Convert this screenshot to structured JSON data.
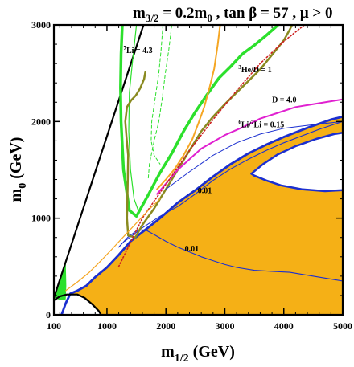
{
  "chart_data": {
    "type": "contour",
    "title": "m3/2 = 0.2m0 , tan β = 57 , μ > 0",
    "title_parts": {
      "m": "m",
      "sub32": "3/2",
      "eq": " = 0.2m",
      "sub0": "0",
      "rest": " , tan β = 57 , μ > 0"
    },
    "xlabel": "m1/2 (GeV)",
    "xlabel_parts": {
      "m": "m",
      "sub": "1/2",
      "unit": " (GeV)"
    },
    "ylabel": "m0 (GeV)",
    "ylabel_parts": {
      "m": "m",
      "sub": "0",
      "unit": " (GeV)"
    },
    "xlim": [
      100,
      5000
    ],
    "ylim": [
      0,
      3000
    ],
    "xticks": [
      "100",
      "1000",
      "2000",
      "3000",
      "4000",
      "5000"
    ],
    "yticks": [
      "0",
      "1000",
      "2000",
      "3000"
    ],
    "grid": false,
    "colors": {
      "allowed_region": "#f5b016",
      "boundary": "#1b2fd0",
      "green": "#2ce02c",
      "olive": "#8a8a20",
      "orange": "#f5a623",
      "magenta": "#e020d0",
      "red_dotted": "#cc2020",
      "excluded_line": "#000000"
    },
    "annotations": [
      {
        "text": "7Li = 4.3",
        "sup": "7",
        "body": "Li = 4.3",
        "x": 1280,
        "y": 2710
      },
      {
        "text": "3He/D = 1",
        "sup": "3",
        "body": "He/D = 1",
        "x": 3230,
        "y": 2510
      },
      {
        "text": "D = 4.0",
        "sup": "",
        "body": "D = 4.0",
        "x": 3800,
        "y": 2200
      },
      {
        "text": "6Li/7Li = 0.15",
        "sup": "6",
        "body": "Li/",
        "sup2": "7",
        "body2": "Li = 0.15",
        "x": 3230,
        "y": 1940
      },
      {
        "text": "0.01",
        "sup": "",
        "body": "0.01",
        "x": 2540,
        "y": 1260
      },
      {
        "text": "0.01",
        "sup": "",
        "body": "0.01",
        "x": 2320,
        "y": 655
      }
    ],
    "series": [
      {
        "role": "allowed-region",
        "style": "fill",
        "points": [
          [
            230,
            0
          ],
          [
            300,
            120
          ],
          [
            380,
            220
          ],
          [
            500,
            250
          ],
          [
            650,
            300
          ],
          [
            800,
            390
          ],
          [
            1000,
            490
          ],
          [
            1200,
            620
          ],
          [
            1400,
            760
          ],
          [
            1650,
            880
          ],
          [
            1900,
            1000
          ],
          [
            2200,
            1160
          ],
          [
            2500,
            1290
          ],
          [
            2800,
            1430
          ],
          [
            3100,
            1560
          ],
          [
            3400,
            1670
          ],
          [
            3700,
            1760
          ],
          [
            4000,
            1840
          ],
          [
            4400,
            1935
          ],
          [
            4800,
            2020
          ],
          [
            5000,
            2050
          ],
          [
            5000,
            0
          ]
        ]
      },
      {
        "role": "upper-white-pocket",
        "style": "fill-white",
        "points": [
          [
            3450,
            1460
          ],
          [
            3650,
            1560
          ],
          [
            3900,
            1660
          ],
          [
            4200,
            1745
          ],
          [
            4550,
            1820
          ],
          [
            4850,
            1870
          ],
          [
            5000,
            1885
          ],
          [
            5000,
            1290
          ],
          [
            4700,
            1280
          ],
          [
            4300,
            1300
          ],
          [
            3950,
            1340
          ],
          [
            3700,
            1390
          ],
          [
            3500,
            1440
          ]
        ]
      },
      {
        "role": "lower-excluded-region",
        "style": "fill-white",
        "points": [
          [
            100,
            0
          ],
          [
            100,
            150
          ],
          [
            200,
            190
          ],
          [
            320,
            210
          ],
          [
            500,
            210
          ],
          [
            620,
            175
          ],
          [
            750,
            110
          ],
          [
            860,
            40
          ],
          [
            900,
            0
          ]
        ]
      },
      {
        "role": "green-wedge",
        "style": "fill",
        "color": "green",
        "points": [
          [
            100,
            175
          ],
          [
            185,
            300
          ],
          [
            300,
            560
          ],
          [
            310,
            300
          ],
          [
            300,
            160
          ],
          [
            220,
            150
          ]
        ]
      },
      {
        "role": "boundary-contour",
        "style": "line",
        "color": "boundary",
        "width": 2.8,
        "points": [
          [
            230,
            0
          ],
          [
            300,
            120
          ],
          [
            380,
            220
          ],
          [
            500,
            250
          ],
          [
            650,
            300
          ],
          [
            800,
            390
          ],
          [
            1000,
            490
          ],
          [
            1200,
            620
          ],
          [
            1400,
            760
          ],
          [
            1650,
            880
          ],
          [
            1900,
            1000
          ],
          [
            2200,
            1160
          ],
          [
            2500,
            1290
          ],
          [
            2800,
            1430
          ],
          [
            3100,
            1560
          ],
          [
            3400,
            1670
          ],
          [
            3700,
            1760
          ],
          [
            4000,
            1840
          ],
          [
            4400,
            1935
          ],
          [
            4800,
            2020
          ],
          [
            5000,
            2050
          ]
        ]
      },
      {
        "role": "pocket-boundary",
        "style": "line",
        "color": "boundary",
        "width": 2.5,
        "points": [
          [
            5000,
            1885
          ],
          [
            4850,
            1870
          ],
          [
            4550,
            1820
          ],
          [
            4200,
            1745
          ],
          [
            3900,
            1660
          ],
          [
            3650,
            1560
          ],
          [
            3450,
            1460
          ],
          [
            3500,
            1440
          ],
          [
            3700,
            1390
          ],
          [
            3950,
            1340
          ],
          [
            4300,
            1300
          ],
          [
            4700,
            1280
          ],
          [
            5000,
            1290
          ]
        ]
      },
      {
        "role": "contour-0.01-upper",
        "style": "line",
        "color": "boundary",
        "width": 1.1,
        "points": [
          [
            1300,
            760
          ],
          [
            1600,
            900
          ],
          [
            1900,
            1020
          ],
          [
            2200,
            1120
          ],
          [
            2500,
            1250
          ],
          [
            2800,
            1390
          ],
          [
            3100,
            1510
          ],
          [
            3400,
            1610
          ],
          [
            3700,
            1700
          ],
          [
            4000,
            1780
          ],
          [
            4300,
            1850
          ],
          [
            4600,
            1920
          ],
          [
            5000,
            2000
          ]
        ]
      },
      {
        "role": "contour-0.01-lower",
        "style": "line",
        "color": "boundary",
        "width": 1.1,
        "points": [
          [
            1200,
            700
          ],
          [
            1350,
            800
          ],
          [
            1500,
            870
          ],
          [
            1650,
            880
          ],
          [
            1800,
            830
          ],
          [
            2000,
            760
          ],
          [
            2200,
            700
          ],
          [
            2400,
            650
          ],
          [
            2600,
            600
          ],
          [
            2800,
            560
          ],
          [
            3000,
            520
          ],
          [
            3200,
            490
          ],
          [
            3500,
            460
          ],
          [
            3800,
            450
          ],
          [
            4100,
            440
          ],
          [
            4400,
            410
          ],
          [
            4700,
            380
          ],
          [
            5000,
            350
          ]
        ]
      },
      {
        "role": "excluded-boundary",
        "style": "line",
        "color": "excluded_line",
        "width": 2.2,
        "points": [
          [
            100,
            150
          ],
          [
            200,
            190
          ],
          [
            320,
            210
          ],
          [
            500,
            210
          ],
          [
            620,
            175
          ],
          [
            750,
            110
          ],
          [
            860,
            40
          ],
          [
            900,
            0
          ]
        ]
      },
      {
        "role": "left-excluded-line",
        "style": "line",
        "color": "excluded_line",
        "width": 2.2,
        "points": [
          [
            100,
            175
          ],
          [
            1620,
            3000
          ]
        ]
      },
      {
        "role": "7Li-contour",
        "style": "line",
        "color": "green",
        "width": 3.5,
        "points": [
          [
            1260,
            3000
          ],
          [
            1240,
            2700
          ],
          [
            1230,
            2350
          ],
          [
            1240,
            2000
          ],
          [
            1280,
            1500
          ],
          [
            1380,
            1080
          ],
          [
            1500,
            1020
          ],
          [
            1700,
            1240
          ],
          [
            1900,
            1470
          ],
          [
            2100,
            1670
          ],
          [
            2300,
            1900
          ],
          [
            2500,
            2100
          ],
          [
            2700,
            2280
          ],
          [
            2900,
            2450
          ],
          [
            3100,
            2570
          ],
          [
            3300,
            2700
          ],
          [
            3500,
            2790
          ],
          [
            3700,
            2890
          ],
          [
            3850,
            2970
          ],
          [
            3900,
            3000
          ]
        ]
      },
      {
        "role": "7Li-thin-outer",
        "style": "line",
        "color": "green",
        "width": 1.2,
        "points": [
          [
            1500,
            3000
          ],
          [
            1430,
            2600
          ],
          [
            1380,
            2300
          ],
          [
            1370,
            1900
          ],
          [
            1400,
            1500
          ],
          [
            1460,
            1200
          ],
          [
            1530,
            1080
          ]
        ]
      },
      {
        "role": "7Li-dashed-a",
        "style": "dashed",
        "color": "green",
        "width": 1,
        "points": [
          [
            1950,
            3000
          ],
          [
            1920,
            2750
          ],
          [
            1880,
            2500
          ],
          [
            1820,
            2250
          ],
          [
            1760,
            2000
          ],
          [
            1750,
            1800
          ],
          [
            1800,
            1650
          ],
          [
            1900,
            1560
          ]
        ]
      },
      {
        "role": "7Li-dashed-b",
        "style": "dashed",
        "color": "green",
        "width": 1,
        "points": [
          [
            2100,
            3000
          ],
          [
            2050,
            2750
          ],
          [
            1990,
            2500
          ],
          [
            1940,
            2250
          ],
          [
            1880,
            2000
          ],
          [
            1800,
            1800
          ],
          [
            1720,
            1560
          ],
          [
            1700,
            1400
          ]
        ]
      },
      {
        "role": "olive-contour",
        "style": "line",
        "color": "olive",
        "width": 2.5,
        "points": [
          [
            1650,
            2510
          ],
          [
            1630,
            2440
          ],
          [
            1560,
            2340
          ],
          [
            1490,
            2270
          ],
          [
            1410,
            2220
          ],
          [
            1340,
            2150
          ],
          [
            1310,
            2000
          ],
          [
            1330,
            1850
          ],
          [
            1360,
            1650
          ],
          [
            1350,
            1300
          ],
          [
            1340,
            1000
          ],
          [
            1360,
            820
          ],
          [
            1480,
            800
          ],
          [
            1600,
            930
          ],
          [
            1800,
            1100
          ],
          [
            2000,
            1300
          ],
          [
            2200,
            1500
          ],
          [
            2400,
            1700
          ],
          [
            2600,
            1900
          ],
          [
            2800,
            2050
          ],
          [
            3000,
            2180
          ],
          [
            3200,
            2300
          ],
          [
            3400,
            2420
          ],
          [
            3600,
            2540
          ],
          [
            3800,
            2690
          ],
          [
            4000,
            2840
          ],
          [
            4100,
            2950
          ],
          [
            4140,
            3000
          ]
        ]
      },
      {
        "role": "3He/D-contour",
        "style": "line",
        "color": "orange",
        "width": 2,
        "points": [
          [
            2920,
            3000
          ],
          [
            2880,
            2800
          ],
          [
            2820,
            2550
          ],
          [
            2740,
            2350
          ],
          [
            2650,
            2150
          ],
          [
            2550,
            1980
          ],
          [
            2450,
            1820
          ],
          [
            2300,
            1650
          ],
          [
            2150,
            1510
          ],
          [
            2000,
            1400
          ],
          [
            1850,
            1300
          ]
        ]
      },
      {
        "role": "D-contour",
        "style": "line",
        "color": "magenta",
        "width": 2,
        "points": [
          [
            1850,
            1250
          ],
          [
            2200,
            1500
          ],
          [
            2600,
            1720
          ],
          [
            3000,
            1860
          ],
          [
            3300,
            1940
          ],
          [
            3600,
            2030
          ],
          [
            3900,
            2090
          ],
          [
            4200,
            2150
          ],
          [
            4600,
            2190
          ],
          [
            5000,
            2230
          ]
        ]
      },
      {
        "role": "6Li/7Li-contour",
        "style": "line",
        "color": "boundary",
        "width": 1,
        "points": [
          [
            2000,
            1300
          ],
          [
            2400,
            1480
          ],
          [
            2800,
            1650
          ],
          [
            3200,
            1780
          ],
          [
            3600,
            1870
          ],
          [
            4000,
            1930
          ],
          [
            4400,
            1960
          ],
          [
            5000,
            2000
          ]
        ]
      },
      {
        "role": "red-dotted",
        "style": "dotted",
        "color": "red_dotted",
        "width": 1.6,
        "points": [
          [
            1200,
            500
          ],
          [
            1600,
            1000
          ],
          [
            2000,
            1350
          ],
          [
            2400,
            1700
          ],
          [
            2800,
            2020
          ],
          [
            3200,
            2320
          ],
          [
            3600,
            2600
          ],
          [
            4000,
            2830
          ],
          [
            4350,
            3000
          ]
        ]
      },
      {
        "role": "orange-lower",
        "style": "line",
        "color": "orange",
        "width": 1.2,
        "points": [
          [
            300,
            250
          ],
          [
            500,
            340
          ],
          [
            700,
            440
          ],
          [
            900,
            560
          ],
          [
            1100,
            690
          ],
          [
            1300,
            820
          ],
          [
            1500,
            950
          ],
          [
            1700,
            1080
          ],
          [
            1900,
            1200
          ]
        ]
      }
    ]
  }
}
